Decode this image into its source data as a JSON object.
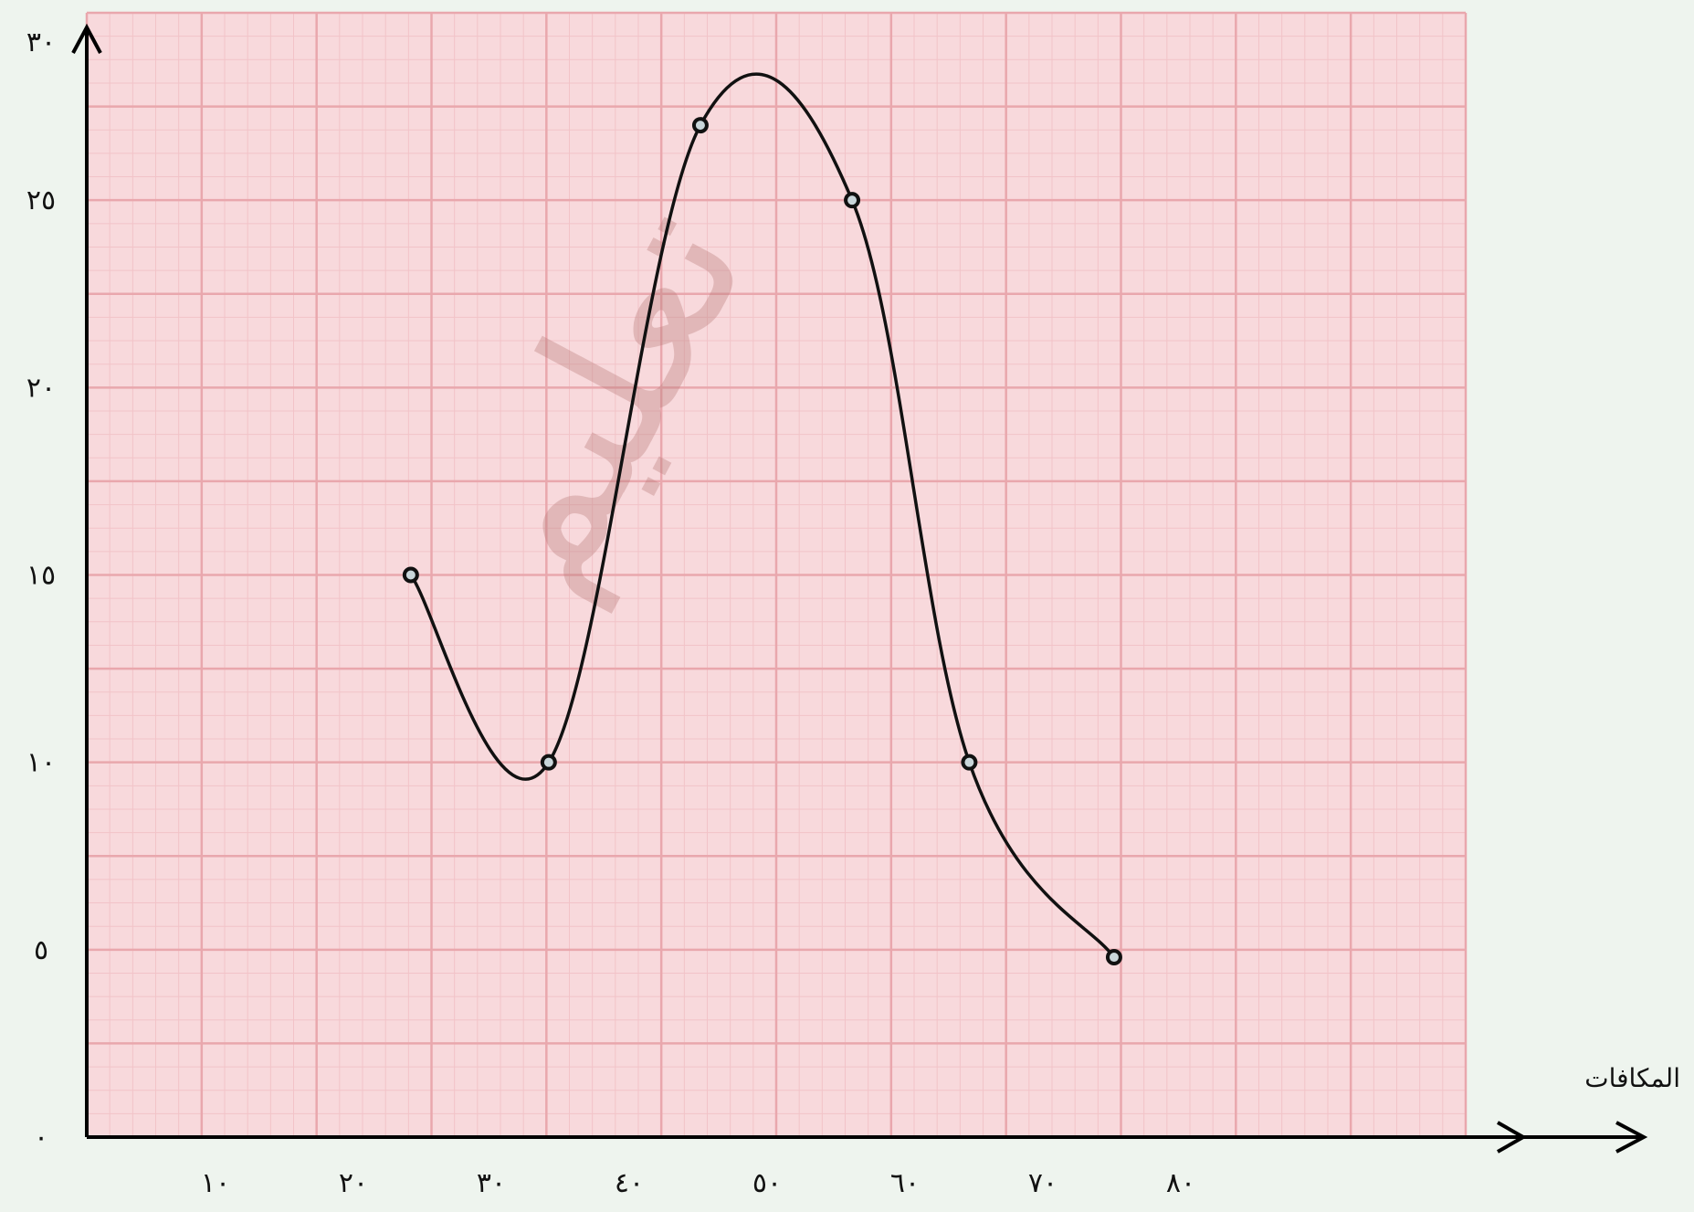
{
  "chart_data": {
    "type": "line",
    "title": "",
    "xlabel": "المكافات",
    "ylabel": "",
    "x_ticks": [
      "١٠",
      "٢٠",
      "٣٠",
      "٤٠",
      "٥٠",
      "٦٠",
      "٧٠",
      "٨٠"
    ],
    "y_ticks": [
      "٠",
      "٥",
      "١٠",
      "١٥",
      "٢٠",
      "٢٥",
      "٣٠"
    ],
    "xlim": [
      0,
      100
    ],
    "ylim": [
      0,
      30
    ],
    "grid": true,
    "series": [
      {
        "x": [
          23.5,
          33.5,
          44.5,
          55.5,
          64,
          74.5
        ],
        "y": [
          15,
          10,
          27,
          25,
          10,
          4.8
        ]
      }
    ]
  },
  "watermark": "تعليم",
  "colors": {
    "grid_background": "#f8d9dc",
    "grid_major": "#e9a7ad",
    "grid_minor": "#f2c3c8",
    "line": "#111111",
    "watermark": "#b77a78"
  }
}
